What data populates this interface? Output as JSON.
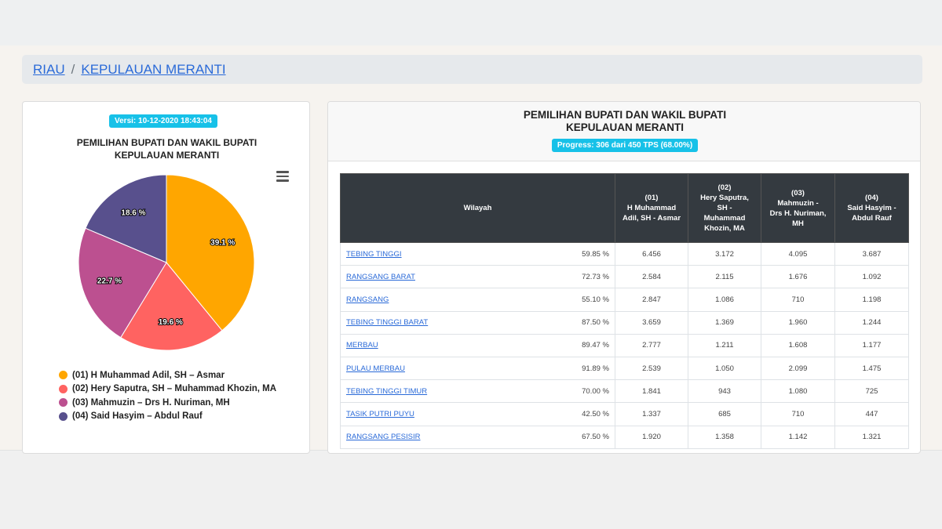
{
  "breadcrumb": {
    "province": "RIAU",
    "separator": "/",
    "regency": "KEPULAUAN MERANTI"
  },
  "left_panel": {
    "version": "Versi: 10-12-2020 18:43:04",
    "title_line1": "PEMILIHAN BUPATI DAN WAKIL BUPATI",
    "title_line2": "KEPULAUAN MERANTI",
    "menu_icon": "hamburger-menu-icon",
    "legend": [
      {
        "label": "(01) H Muhammad Adil, SH – Asmar",
        "color": "#ffa600"
      },
      {
        "label": "(02) Hery Saputra, SH – Muhammad Khozin, MA",
        "color": "#ff6361"
      },
      {
        "label": "(03) Mahmuzin – Drs H. Nuriman, MH",
        "color": "#bc5090"
      },
      {
        "label": "(04) Said Hasyim – Abdul Rauf",
        "color": "#58508d"
      }
    ]
  },
  "chart_data": {
    "type": "pie",
    "labels": [
      "(01) H Muhammad Adil, SH – Asmar",
      "(02) Hery Saputra, SH – Muhammad Khozin, MA",
      "(03) Mahmuzin – Drs H. Nuriman, MH",
      "(04) Said Hasyim – Abdul Rauf"
    ],
    "values": [
      39.1,
      19.6,
      22.7,
      18.6
    ],
    "value_labels": [
      "39.1 %",
      "19.6 %",
      "22.7 %",
      "18.6 %"
    ],
    "colors": [
      "#ffa600",
      "#ff6361",
      "#bc5090",
      "#58508d"
    ],
    "title": "PEMILIHAN BUPATI DAN WAKIL BUPATI KEPULAUAN MERANTI"
  },
  "right_panel": {
    "title_line1": "PEMILIHAN BUPATI DAN WAKIL BUPATI",
    "title_line2": "KEPULAUAN MERANTI",
    "progress": "Progress: 306 dari 450 TPS (68.00%)",
    "progress_fraction": 0.68,
    "table": {
      "headers": {
        "wilayah": "Wilayah",
        "c1_line1": "(01)",
        "c1_line2": "H Muhammad",
        "c1_line3": "Adil, SH - Asmar",
        "c2_line1": "(02)",
        "c2_line2": "Hery Saputra,",
        "c2_line3": "SH -",
        "c2_line4": "Muhammad",
        "c2_line5": "Khozin, MA",
        "c3_line1": "(03)",
        "c3_line2": "Mahmuzin -",
        "c3_line3": "Drs H. Nuriman,",
        "c3_line4": "MH",
        "c4_line1": "(04)",
        "c4_line2": "Said Hasyim -",
        "c4_line3": "Abdul Rauf"
      },
      "rows": [
        {
          "region": "TEBING TINGGI",
          "pct": "59.85 %",
          "c1": "6.456",
          "c2": "3.172",
          "c3": "4.095",
          "c4": "3.687"
        },
        {
          "region": "RANGSANG BARAT",
          "pct": "72.73 %",
          "c1": "2.584",
          "c2": "2.115",
          "c3": "1.676",
          "c4": "1.092"
        },
        {
          "region": "RANGSANG",
          "pct": "55.10 %",
          "c1": "2.847",
          "c2": "1.086",
          "c3": "710",
          "c4": "1.198"
        },
        {
          "region": "TEBING TINGGI BARAT",
          "pct": "87.50 %",
          "c1": "3.659",
          "c2": "1.369",
          "c3": "1.960",
          "c4": "1.244"
        },
        {
          "region": "MERBAU",
          "pct": "89.47 %",
          "c1": "2.777",
          "c2": "1.211",
          "c3": "1.608",
          "c4": "1.177"
        },
        {
          "region": "PULAU MERBAU",
          "pct": "91.89 %",
          "c1": "2.539",
          "c2": "1.050",
          "c3": "2.099",
          "c4": "1.475"
        },
        {
          "region": "TEBING TINGGI TIMUR",
          "pct": "70.00 %",
          "c1": "1.841",
          "c2": "943",
          "c3": "1.080",
          "c4": "725"
        },
        {
          "region": "TASIK PUTRI PUYU",
          "pct": "42.50 %",
          "c1": "1.337",
          "c2": "685",
          "c3": "710",
          "c4": "447"
        },
        {
          "region": "RANGSANG PESISIR",
          "pct": "67.50 %",
          "c1": "1.920",
          "c2": "1.358",
          "c3": "1.142",
          "c4": "1.321"
        }
      ]
    }
  }
}
